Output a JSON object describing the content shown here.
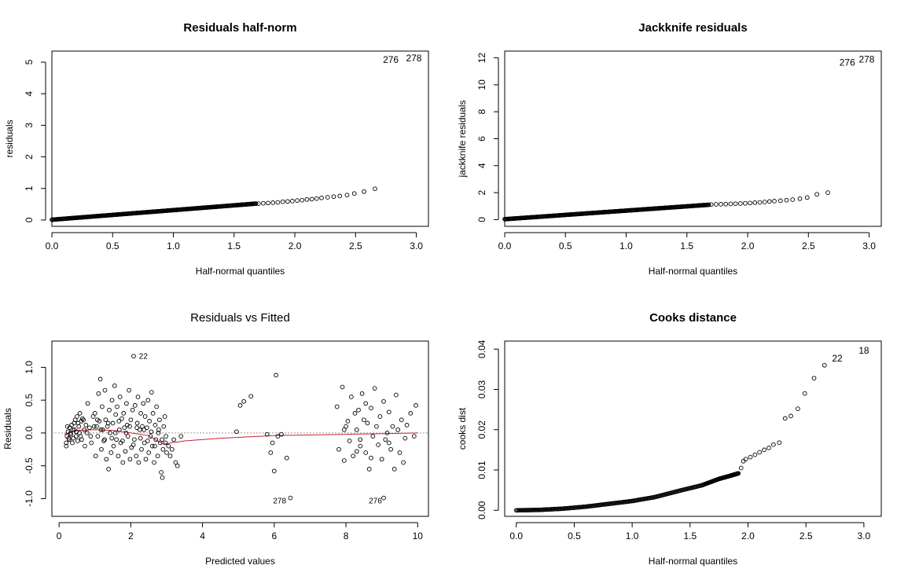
{
  "chart_data": [
    {
      "id": "p1",
      "type": "scatter",
      "title": "Residuals half-norm",
      "xlabel": "Half-normal quantiles",
      "ylabel": "residuals",
      "xlim": [
        0,
        3.1
      ],
      "ylim": [
        -0.2,
        5.35
      ],
      "xticks": [
        0.0,
        0.5,
        1.0,
        1.5,
        2.0,
        2.5,
        3.0
      ],
      "xtick_labels": [
        "0.0",
        "0.5",
        "1.0",
        "1.5",
        "2.0",
        "2.5",
        "3.0"
      ],
      "yticks": [
        0,
        1,
        2,
        3,
        4,
        5
      ],
      "ytick_labels": [
        "0",
        "1",
        "2",
        "3",
        "4",
        "5"
      ],
      "points": [
        [
          1.7,
          0.52
        ],
        [
          1.74,
          0.53
        ],
        [
          1.78,
          0.54
        ],
        [
          1.82,
          0.55
        ],
        [
          1.86,
          0.56
        ],
        [
          1.9,
          0.58
        ],
        [
          1.94,
          0.59
        ],
        [
          1.98,
          0.6
        ],
        [
          2.02,
          0.62
        ],
        [
          2.06,
          0.63
        ],
        [
          2.1,
          0.65
        ],
        [
          2.14,
          0.66
        ],
        [
          2.18,
          0.68
        ],
        [
          2.22,
          0.7
        ],
        [
          2.27,
          0.72
        ],
        [
          2.32,
          0.74
        ],
        [
          2.37,
          0.76
        ],
        [
          2.43,
          0.79
        ],
        [
          2.49,
          0.84
        ],
        [
          2.57,
          0.9
        ],
        [
          2.66,
          0.99
        ]
      ],
      "dense_band": {
        "x_from": 0.0,
        "x_to": 1.68,
        "y_from": 0.01,
        "y_to": 0.52,
        "count": 265
      },
      "annotations": [
        {
          "x": 2.79,
          "y": 5.05,
          "text": "276"
        },
        {
          "x": 2.98,
          "y": 5.1,
          "text": "278"
        }
      ]
    },
    {
      "id": "p2",
      "type": "scatter",
      "title": "Jackknife residuals",
      "xlabel": "Half-normal quantiles",
      "ylabel": "jackknife residuals",
      "xlim": [
        0,
        3.1
      ],
      "ylim": [
        -0.5,
        12.5
      ],
      "xticks": [
        0.0,
        0.5,
        1.0,
        1.5,
        2.0,
        2.5,
        3.0
      ],
      "xtick_labels": [
        "0.0",
        "0.5",
        "1.0",
        "1.5",
        "2.0",
        "2.5",
        "3.0"
      ],
      "yticks": [
        0,
        2,
        4,
        6,
        8,
        10,
        12
      ],
      "ytick_labels": [
        "0",
        "2",
        "4",
        "6",
        "8",
        "10",
        "12"
      ],
      "points": [
        [
          1.7,
          1.12
        ],
        [
          1.74,
          1.13
        ],
        [
          1.78,
          1.14
        ],
        [
          1.82,
          1.15
        ],
        [
          1.86,
          1.16
        ],
        [
          1.9,
          1.18
        ],
        [
          1.94,
          1.19
        ],
        [
          1.98,
          1.21
        ],
        [
          2.02,
          1.23
        ],
        [
          2.06,
          1.26
        ],
        [
          2.1,
          1.28
        ],
        [
          2.14,
          1.31
        ],
        [
          2.18,
          1.34
        ],
        [
          2.22,
          1.37
        ],
        [
          2.27,
          1.4
        ],
        [
          2.32,
          1.44
        ],
        [
          2.37,
          1.48
        ],
        [
          2.43,
          1.55
        ],
        [
          2.49,
          1.64
        ],
        [
          2.57,
          1.88
        ],
        [
          2.66,
          2.0
        ]
      ],
      "dense_band": {
        "x_from": 0.0,
        "x_to": 1.68,
        "y_from": 0.03,
        "y_to": 1.1,
        "count": 265
      },
      "annotations": [
        {
          "x": 2.82,
          "y": 11.6,
          "text": "276"
        },
        {
          "x": 2.98,
          "y": 11.85,
          "text": "278"
        }
      ]
    },
    {
      "id": "p3",
      "type": "scatter",
      "title": "Residuals vs Fitted",
      "xlabel": "Predicted values",
      "ylabel": "Residuals",
      "xlim": [
        -0.2,
        10.3
      ],
      "ylim": [
        -1.27,
        1.4
      ],
      "xticks": [
        0,
        2,
        4,
        6,
        8,
        10
      ],
      "xtick_labels": [
        "0",
        "2",
        "4",
        "6",
        "8",
        "10"
      ],
      "yticks": [
        -1.0,
        -0.5,
        0.0,
        0.5,
        1.0
      ],
      "ytick_labels": [
        "-1.0",
        "-0.5",
        "0.0",
        "0.5",
        "1.0"
      ],
      "reference_line": 0,
      "smooth": [
        [
          0.15,
          -0.02
        ],
        [
          0.5,
          0.04
        ],
        [
          1.0,
          0.05
        ],
        [
          1.5,
          0.04
        ],
        [
          2.0,
          0.0
        ],
        [
          2.5,
          -0.04
        ],
        [
          2.9,
          -0.17
        ],
        [
          3.5,
          -0.12
        ],
        [
          4.5,
          -0.08
        ],
        [
          6.0,
          -0.04
        ],
        [
          8.0,
          -0.02
        ],
        [
          10.0,
          0.0
        ]
      ],
      "points": [
        [
          0.2,
          -0.15
        ],
        [
          0.22,
          -0.05
        ],
        [
          0.25,
          0.02
        ],
        [
          0.28,
          -0.1
        ],
        [
          0.3,
          0.08
        ],
        [
          0.33,
          -0.02
        ],
        [
          0.35,
          0.12
        ],
        [
          0.38,
          0.05
        ],
        [
          0.4,
          -0.08
        ],
        [
          0.42,
          0.15
        ],
        [
          0.45,
          0.2
        ],
        [
          0.48,
          0.02
        ],
        [
          0.5,
          0.25
        ],
        [
          0.52,
          -0.12
        ],
        [
          0.55,
          0.1
        ],
        [
          0.58,
          0.3
        ],
        [
          0.6,
          -0.05
        ],
        [
          0.62,
          0.18
        ],
        [
          0.65,
          0.22
        ],
        [
          0.7,
          0.05
        ],
        [
          0.72,
          -0.2
        ],
        [
          0.75,
          0.12
        ],
        [
          0.8,
          0.45
        ],
        [
          0.85,
          0.08
        ],
        [
          0.9,
          -0.15
        ],
        [
          0.95,
          0.25
        ],
        [
          1.0,
          0.3
        ],
        [
          1.02,
          -0.35
        ],
        [
          1.05,
          0.1
        ],
        [
          1.08,
          -0.05
        ],
        [
          1.1,
          0.6
        ],
        [
          1.12,
          0.18
        ],
        [
          1.15,
          0.82
        ],
        [
          1.18,
          -0.25
        ],
        [
          1.2,
          0.4
        ],
        [
          1.22,
          0.05
        ],
        [
          1.25,
          -0.12
        ],
        [
          1.28,
          0.65
        ],
        [
          1.3,
          0.2
        ],
        [
          1.32,
          -0.4
        ],
        [
          1.35,
          0.1
        ],
        [
          1.38,
          -0.55
        ],
        [
          1.4,
          0.35
        ],
        [
          1.42,
          0.0
        ],
        [
          1.45,
          -0.3
        ],
        [
          1.48,
          0.5
        ],
        [
          1.5,
          0.15
        ],
        [
          1.52,
          -0.2
        ],
        [
          1.55,
          0.72
        ],
        [
          1.58,
          0.28
        ],
        [
          1.6,
          -0.1
        ],
        [
          1.62,
          0.4
        ],
        [
          1.65,
          -0.35
        ],
        [
          1.68,
          0.05
        ],
        [
          1.7,
          0.55
        ],
        [
          1.72,
          -0.15
        ],
        [
          1.75,
          0.22
        ],
        [
          1.78,
          -0.45
        ],
        [
          1.8,
          0.3
        ],
        [
          1.82,
          0.08
        ],
        [
          1.85,
          -0.28
        ],
        [
          1.88,
          0.45
        ],
        [
          1.9,
          0.12
        ],
        [
          1.92,
          -0.05
        ],
        [
          1.95,
          0.65
        ],
        [
          1.98,
          -0.4
        ],
        [
          2.0,
          0.2
        ],
        [
          2.02,
          -0.22
        ],
        [
          2.05,
          0.35
        ],
        [
          2.08,
          1.17
        ],
        [
          2.1,
          -0.1
        ],
        [
          2.12,
          0.42
        ],
        [
          2.15,
          -0.35
        ],
        [
          2.18,
          0.15
        ],
        [
          2.2,
          0.55
        ],
        [
          2.22,
          -0.45
        ],
        [
          2.25,
          0.05
        ],
        [
          2.28,
          0.3
        ],
        [
          2.3,
          -0.25
        ],
        [
          2.32,
          0.1
        ],
        [
          2.35,
          0.45
        ],
        [
          2.38,
          -0.15
        ],
        [
          2.4,
          0.25
        ],
        [
          2.42,
          -0.4
        ],
        [
          2.45,
          0.08
        ],
        [
          2.48,
          0.5
        ],
        [
          2.5,
          -0.3
        ],
        [
          2.52,
          0.18
        ],
        [
          2.55,
          -0.05
        ],
        [
          2.58,
          0.62
        ],
        [
          2.6,
          -0.2
        ],
        [
          2.62,
          0.3
        ],
        [
          2.65,
          -0.45
        ],
        [
          2.68,
          0.12
        ],
        [
          2.7,
          -0.1
        ],
        [
          2.72,
          0.4
        ],
        [
          2.75,
          -0.35
        ],
        [
          2.78,
          0.05
        ],
        [
          2.8,
          0.2
        ],
        [
          2.82,
          -0.15
        ],
        [
          2.85,
          -0.6
        ],
        [
          2.88,
          -0.68
        ],
        [
          2.9,
          -0.25
        ],
        [
          2.92,
          0.1
        ],
        [
          2.95,
          0.25
        ],
        [
          2.98,
          -0.05
        ],
        [
          3.0,
          -0.3
        ],
        [
          3.05,
          -0.2
        ],
        [
          3.1,
          -0.35
        ],
        [
          3.2,
          -0.1
        ],
        [
          3.25,
          -0.45
        ],
        [
          3.3,
          -0.5
        ],
        [
          3.4,
          -0.05
        ],
        [
          0.2,
          -0.2
        ],
        [
          0.23,
          0.1
        ],
        [
          0.27,
          -0.08
        ],
        [
          0.32,
          0.0
        ],
        [
          0.37,
          -0.15
        ],
        [
          0.43,
          0.05
        ],
        [
          0.47,
          -0.05
        ],
        [
          0.53,
          0.15
        ],
        [
          0.57,
          0.0
        ],
        [
          0.63,
          -0.1
        ],
        [
          0.68,
          0.2
        ],
        [
          0.78,
          0.0
        ],
        [
          0.88,
          -0.05
        ],
        [
          0.98,
          0.1
        ],
        [
          1.07,
          0.2
        ],
        [
          1.17,
          0.05
        ],
        [
          1.27,
          -0.1
        ],
        [
          1.37,
          0.15
        ],
        [
          1.47,
          -0.08
        ],
        [
          1.57,
          0.0
        ],
        [
          1.67,
          0.18
        ],
        [
          1.77,
          -0.12
        ],
        [
          1.87,
          0.0
        ],
        [
          1.97,
          0.1
        ],
        [
          2.07,
          -0.18
        ],
        [
          2.17,
          0.08
        ],
        [
          2.27,
          -0.08
        ],
        [
          2.37,
          0.05
        ],
        [
          2.47,
          -0.12
        ],
        [
          2.57,
          0.02
        ],
        [
          2.67,
          -0.2
        ],
        [
          2.77,
          0.0
        ],
        [
          2.87,
          -0.1
        ],
        [
          2.97,
          -0.15
        ],
        [
          3.15,
          -0.25
        ],
        [
          4.95,
          0.02
        ],
        [
          5.05,
          0.42
        ],
        [
          5.15,
          0.48
        ],
        [
          5.35,
          0.56
        ],
        [
          5.8,
          -0.02
        ],
        [
          5.9,
          -0.3
        ],
        [
          5.95,
          -0.15
        ],
        [
          6.0,
          -0.58
        ],
        [
          6.05,
          0.88
        ],
        [
          6.1,
          -0.05
        ],
        [
          6.2,
          -0.02
        ],
        [
          6.35,
          -0.38
        ],
        [
          6.45,
          -0.99
        ],
        [
          7.75,
          0.4
        ],
        [
          7.8,
          -0.25
        ],
        [
          7.9,
          0.7
        ],
        [
          7.95,
          -0.42
        ],
        [
          8.0,
          0.1
        ],
        [
          8.05,
          0.18
        ],
        [
          8.1,
          -0.12
        ],
        [
          8.15,
          0.55
        ],
        [
          8.2,
          -0.35
        ],
        [
          8.25,
          0.3
        ],
        [
          8.3,
          0.05
        ],
        [
          8.35,
          0.35
        ],
        [
          8.4,
          -0.2
        ],
        [
          8.45,
          0.6
        ],
        [
          8.5,
          0.2
        ],
        [
          8.55,
          -0.3
        ],
        [
          8.6,
          0.15
        ],
        [
          8.65,
          -0.55
        ],
        [
          8.7,
          0.38
        ],
        [
          8.75,
          -0.05
        ],
        [
          8.8,
          0.68
        ],
        [
          8.85,
          0.1
        ],
        [
          8.9,
          -0.18
        ],
        [
          8.95,
          0.25
        ],
        [
          9.0,
          -0.4
        ],
        [
          9.05,
          0.48
        ],
        [
          9.1,
          -0.1
        ],
        [
          9.15,
          0.0
        ],
        [
          9.2,
          0.32
        ],
        [
          9.25,
          -0.25
        ],
        [
          9.3,
          0.1
        ],
        [
          9.35,
          -0.55
        ],
        [
          9.4,
          0.58
        ],
        [
          9.45,
          0.05
        ],
        [
          9.5,
          -0.3
        ],
        [
          9.55,
          0.2
        ],
        [
          9.6,
          -0.45
        ],
        [
          9.7,
          0.12
        ],
        [
          9.8,
          0.3
        ],
        [
          9.9,
          -0.05
        ],
        [
          9.95,
          0.42
        ],
        [
          9.05,
          -0.99
        ],
        [
          8.4,
          -0.1
        ],
        [
          8.55,
          0.45
        ],
        [
          8.7,
          -0.38
        ],
        [
          9.2,
          -0.15
        ],
        [
          9.65,
          -0.08
        ],
        [
          7.95,
          0.05
        ],
        [
          8.3,
          -0.28
        ]
      ],
      "annotations": [
        {
          "x": 2.35,
          "y": 1.16,
          "text": "22"
        },
        {
          "x": 6.15,
          "y": -1.04,
          "text": "278"
        },
        {
          "x": 8.82,
          "y": -1.04,
          "text": "276"
        }
      ]
    },
    {
      "id": "p4",
      "type": "scatter",
      "title": "Cooks distance",
      "xlabel": "Half-normal quantiles",
      "ylabel": "cooks dist",
      "xlim": [
        -0.1,
        3.15
      ],
      "ylim": [
        -0.0015,
        0.042
      ],
      "xticks": [
        0.0,
        0.5,
        1.0,
        1.5,
        2.0,
        2.5,
        3.0
      ],
      "xtick_labels": [
        "0.0",
        "0.5",
        "1.0",
        "1.5",
        "2.0",
        "2.5",
        "3.0"
      ],
      "yticks": [
        0.0,
        0.01,
        0.02,
        0.03,
        0.04
      ],
      "ytick_labels": [
        "0.00",
        "0.01",
        "0.02",
        "0.03",
        "0.04"
      ],
      "points": [
        [
          1.94,
          0.0105
        ],
        [
          1.96,
          0.0122
        ],
        [
          1.98,
          0.0127
        ],
        [
          2.02,
          0.0132
        ],
        [
          2.06,
          0.0138
        ],
        [
          2.1,
          0.0144
        ],
        [
          2.14,
          0.015
        ],
        [
          2.18,
          0.0155
        ],
        [
          2.22,
          0.0163
        ],
        [
          2.27,
          0.0168
        ],
        [
          2.32,
          0.0228
        ],
        [
          2.37,
          0.0234
        ],
        [
          2.43,
          0.0252
        ],
        [
          2.49,
          0.029
        ],
        [
          2.57,
          0.0328
        ],
        [
          2.66,
          0.036
        ]
      ],
      "curve_band": [
        [
          0.0,
          0.0
        ],
        [
          0.2,
          0.0001
        ],
        [
          0.4,
          0.0004
        ],
        [
          0.6,
          0.0009
        ],
        [
          0.8,
          0.0016
        ],
        [
          1.0,
          0.0023
        ],
        [
          1.2,
          0.0033
        ],
        [
          1.4,
          0.0048
        ],
        [
          1.6,
          0.0062
        ],
        [
          1.75,
          0.0078
        ],
        [
          1.85,
          0.0086
        ],
        [
          1.92,
          0.0092
        ]
      ],
      "annotations": [
        {
          "x": 2.77,
          "y": 0.0375,
          "text": "22"
        },
        {
          "x": 3.0,
          "y": 0.0395,
          "text": "18"
        }
      ]
    }
  ]
}
